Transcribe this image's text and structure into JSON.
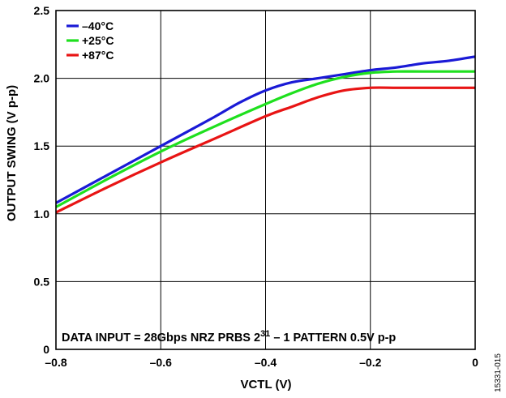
{
  "chart_data": {
    "type": "line",
    "xlabel": "VCTL (V)",
    "ylabel": "OUTPUT SWING (V p-p)",
    "xlim": [
      -0.8,
      0
    ],
    "ylim": [
      0,
      2.5
    ],
    "xticks": [
      -0.8,
      -0.6,
      -0.4,
      -0.2,
      0
    ],
    "xtick_labels": [
      "–0.8",
      "–0.6",
      "–0.4",
      "–0.2",
      "0"
    ],
    "yticks": [
      0,
      0.5,
      1.0,
      1.5,
      2.0,
      2.5
    ],
    "ytick_labels": [
      "0",
      "0.5",
      "1.0",
      "1.5",
      "2.0",
      "2.5"
    ],
    "grid": true,
    "legend_position": "top-left",
    "annotation": {
      "text": "DATA INPUT = 28Gbps NRZ PRBS 2",
      "superscript": "31",
      "text_after": " – 1 PATTERN 0.5V p-p"
    },
    "figure_id": "15331-015",
    "series": [
      {
        "name": "–40°C",
        "color": "#1a1ad6",
        "x": [
          -0.8,
          -0.7,
          -0.6,
          -0.5,
          -0.45,
          -0.4,
          -0.35,
          -0.3,
          -0.25,
          -0.2,
          -0.15,
          -0.1,
          -0.05,
          0
        ],
        "y": [
          1.08,
          1.29,
          1.5,
          1.71,
          1.82,
          1.91,
          1.97,
          2.0,
          2.03,
          2.06,
          2.08,
          2.11,
          2.13,
          2.16
        ]
      },
      {
        "name": "+25°C",
        "color": "#1ee01e",
        "x": [
          -0.8,
          -0.7,
          -0.6,
          -0.5,
          -0.4,
          -0.35,
          -0.3,
          -0.25,
          -0.2,
          -0.15,
          -0.1,
          0
        ],
        "y": [
          1.05,
          1.26,
          1.46,
          1.64,
          1.81,
          1.89,
          1.96,
          2.01,
          2.04,
          2.05,
          2.05,
          2.05
        ]
      },
      {
        "name": "+87°C",
        "color": "#e81414",
        "x": [
          -0.8,
          -0.7,
          -0.6,
          -0.5,
          -0.4,
          -0.35,
          -0.3,
          -0.25,
          -0.2,
          -0.15,
          -0.1,
          0
        ],
        "y": [
          1.01,
          1.2,
          1.38,
          1.55,
          1.72,
          1.79,
          1.86,
          1.91,
          1.93,
          1.93,
          1.93,
          1.93
        ]
      }
    ]
  }
}
